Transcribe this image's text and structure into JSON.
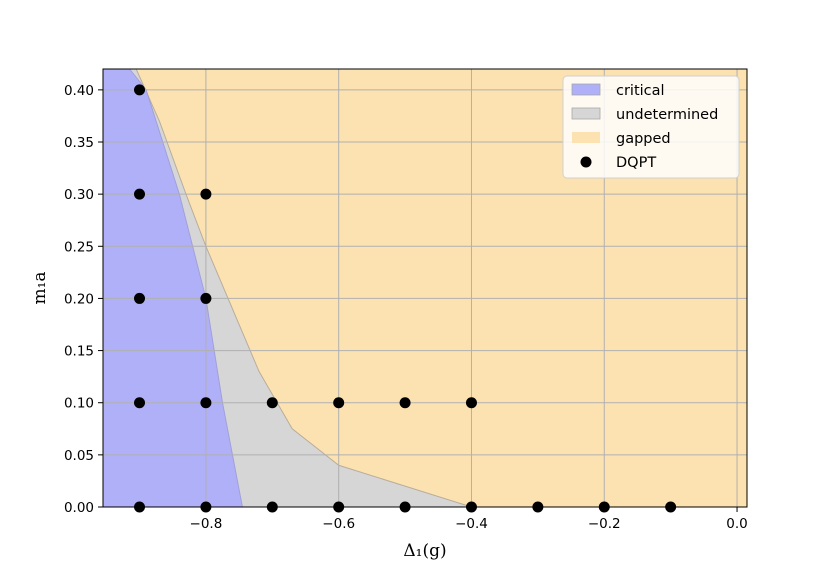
{
  "chart_data": {
    "type": "area",
    "xlabel": "Δ₁(g)",
    "ylabel": "m₁a",
    "xlim": [
      -0.955,
      0.015
    ],
    "ylim": [
      0.0,
      0.42
    ],
    "x_ticks": [
      -0.8,
      -0.6,
      -0.4,
      -0.2,
      0.0
    ],
    "x_tick_labels": [
      "−0.8",
      "−0.6",
      "−0.4",
      "−0.2",
      "0.0"
    ],
    "y_ticks": [
      0.0,
      0.05,
      0.1,
      0.15,
      0.2,
      0.25,
      0.3,
      0.35,
      0.4
    ],
    "y_tick_labels": [
      "0.00",
      "0.05",
      "0.10",
      "0.15",
      "0.20",
      "0.25",
      "0.30",
      "0.35",
      "0.40"
    ],
    "grid": true,
    "legend_position": "top-right",
    "regions": [
      {
        "name": "critical",
        "color": "#b0b0f8",
        "boundary": [
          [
            -0.745,
            0.0
          ],
          [
            -0.76,
            0.05
          ],
          [
            -0.775,
            0.1
          ],
          [
            -0.8,
            0.2
          ],
          [
            -0.84,
            0.3
          ],
          [
            -0.89,
            0.4
          ],
          [
            -0.915,
            0.42
          ]
        ]
      },
      {
        "name": "undetermined",
        "color": "#d6d6d6",
        "boundary": [
          [
            -0.4,
            0.0
          ],
          [
            -0.5,
            0.02
          ],
          [
            -0.6,
            0.04
          ],
          [
            -0.67,
            0.075
          ],
          [
            -0.72,
            0.13
          ],
          [
            -0.8,
            0.25
          ],
          [
            -0.83,
            0.3
          ],
          [
            -0.87,
            0.37
          ],
          [
            -0.905,
            0.42
          ]
        ]
      },
      {
        "name": "gapped",
        "color": "#fde2b1"
      }
    ],
    "series": [
      {
        "name": "DQPT",
        "type": "scatter",
        "color": "#000000",
        "points": [
          [
            -0.9,
            0.4
          ],
          [
            -0.9,
            0.3
          ],
          [
            -0.8,
            0.3
          ],
          [
            -0.9,
            0.2
          ],
          [
            -0.8,
            0.2
          ],
          [
            -0.9,
            0.1
          ],
          [
            -0.8,
            0.1
          ],
          [
            -0.7,
            0.1
          ],
          [
            -0.6,
            0.1
          ],
          [
            -0.5,
            0.1
          ],
          [
            -0.4,
            0.1
          ],
          [
            -0.9,
            0.0
          ],
          [
            -0.8,
            0.0
          ],
          [
            -0.7,
            0.0
          ],
          [
            -0.6,
            0.0
          ],
          [
            -0.5,
            0.0
          ],
          [
            -0.4,
            0.0
          ],
          [
            -0.3,
            0.0
          ],
          [
            -0.2,
            0.0
          ],
          [
            -0.1,
            0.0
          ]
        ]
      }
    ],
    "legend": [
      "critical",
      "undetermined",
      "gapped",
      "DQPT"
    ]
  }
}
